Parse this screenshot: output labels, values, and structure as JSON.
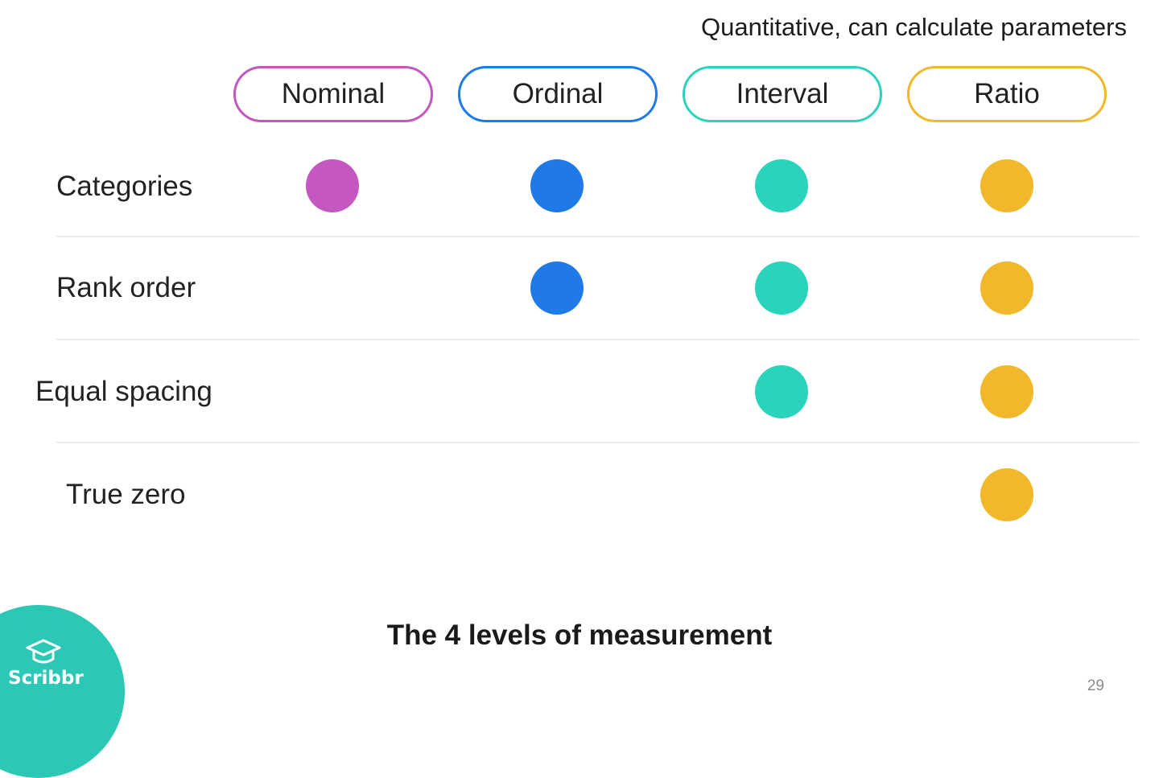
{
  "header_note": "Quantitative, can calculate parameters",
  "levels": [
    {
      "name": "Nominal",
      "color": "#c558c0"
    },
    {
      "name": "Ordinal",
      "color": "#1f7ae8"
    },
    {
      "name": "Interval",
      "color": "#2ad3bc"
    },
    {
      "name": "Ratio",
      "color": "#f0b82a"
    }
  ],
  "properties": [
    {
      "name": "Categories",
      "applies": [
        true,
        true,
        true,
        true
      ]
    },
    {
      "name": "Rank order",
      "applies": [
        false,
        true,
        true,
        true
      ]
    },
    {
      "name": "Equal spacing",
      "applies": [
        false,
        false,
        true,
        true
      ]
    },
    {
      "name": "True zero",
      "applies": [
        false,
        false,
        false,
        true
      ]
    }
  ],
  "caption": "The 4 levels of measurement",
  "page_number": "29",
  "logo": {
    "text": "Scribbr",
    "icon": "graduation-cap-icon",
    "color": "#2ac8b5"
  }
}
